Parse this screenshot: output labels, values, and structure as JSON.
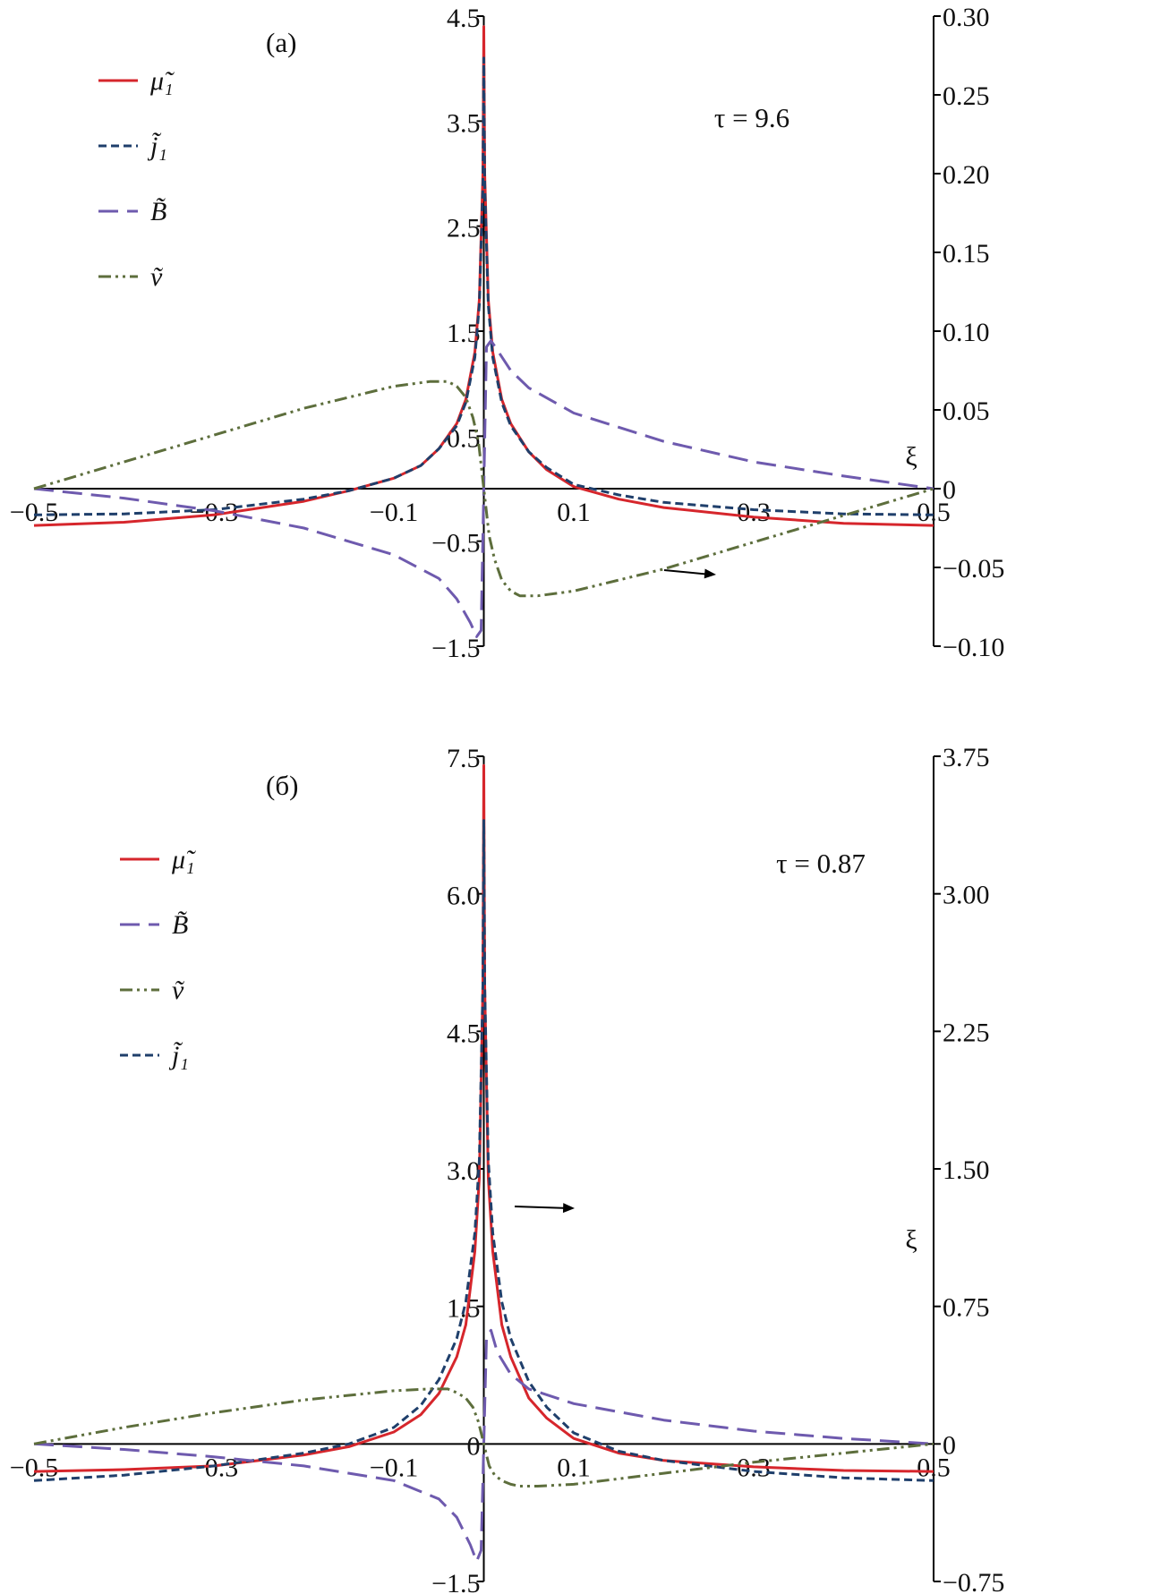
{
  "colors": {
    "mu1": "#d6262c",
    "j1": "#1f3f6b",
    "B": "#6e5aae",
    "v": "#5d6e3c",
    "axis": "#000000"
  },
  "chart_data": [
    {
      "type": "line",
      "panel_label": "(a)",
      "annotation": "τ = 9.6",
      "xlabel": "ξ",
      "xlim": [
        -0.5,
        0.5
      ],
      "x_ticks": [
        "-0.5",
        "-0.3",
        "-0.1",
        "0.1",
        "0.3",
        "0.5"
      ],
      "ylim_left": [
        -1.5,
        4.5
      ],
      "y_ticks_left": [
        "-1.5",
        "-0.5",
        "0.5",
        "1.5",
        "2.5",
        "3.5",
        "4.5"
      ],
      "ylim_right": [
        -0.1,
        0.3
      ],
      "y_ticks_right": [
        "-0.10",
        "-0.05",
        "0",
        "0.05",
        "0.10",
        "0.15",
        "0.20",
        "0.25",
        "0.30"
      ],
      "legend_position": "top-left",
      "legend": [
        {
          "key": "mu1",
          "label": "μ̃₁",
          "dash": "solid"
        },
        {
          "key": "j1",
          "label": "j̃₁",
          "dash": "short-dash"
        },
        {
          "key": "B",
          "label": "B̃",
          "dash": "long-dash"
        },
        {
          "key": "v",
          "label": "ṽ",
          "dash": "dash-dot-dot"
        }
      ],
      "arrow_note": "v plotted against right axis",
      "series": [
        {
          "key": "mu1",
          "axis": "left",
          "x": [
            -0.5,
            -0.4,
            -0.3,
            -0.2,
            -0.15,
            -0.1,
            -0.07,
            -0.05,
            -0.03,
            -0.02,
            -0.01,
            -0.005,
            -0.001,
            0,
            0.001,
            0.005,
            0.01,
            0.02,
            0.03,
            0.05,
            0.07,
            0.1,
            0.15,
            0.2,
            0.3,
            0.4,
            0.5
          ],
          "y": [
            -0.35,
            -0.32,
            -0.25,
            -0.12,
            -0.02,
            0.1,
            0.22,
            0.38,
            0.62,
            0.85,
            1.3,
            1.8,
            3.0,
            4.4,
            3.0,
            1.8,
            1.3,
            0.85,
            0.62,
            0.35,
            0.18,
            0.02,
            -0.1,
            -0.18,
            -0.27,
            -0.33,
            -0.35
          ]
        },
        {
          "key": "j1",
          "axis": "left",
          "x": [
            -0.5,
            -0.4,
            -0.3,
            -0.2,
            -0.15,
            -0.1,
            -0.07,
            -0.05,
            -0.03,
            -0.02,
            -0.01,
            -0.005,
            -0.001,
            0,
            0.001,
            0.005,
            0.01,
            0.02,
            0.03,
            0.05,
            0.07,
            0.1,
            0.15,
            0.2,
            0.3,
            0.4,
            0.5
          ],
          "y": [
            -0.25,
            -0.24,
            -0.2,
            -0.1,
            -0.02,
            0.1,
            0.22,
            0.38,
            0.6,
            0.82,
            1.25,
            1.75,
            2.9,
            4.1,
            2.9,
            1.75,
            1.25,
            0.82,
            0.6,
            0.35,
            0.2,
            0.04,
            -0.06,
            -0.13,
            -0.2,
            -0.24,
            -0.25
          ]
        },
        {
          "key": "B",
          "axis": "right",
          "x": [
            -0.5,
            -0.4,
            -0.3,
            -0.2,
            -0.1,
            -0.05,
            -0.03,
            -0.015,
            -0.008,
            -0.003,
            0,
            0.003,
            0.008,
            0.015,
            0.03,
            0.05,
            0.1,
            0.2,
            0.3,
            0.4,
            0.5
          ],
          "y": [
            0,
            -0.006,
            -0.014,
            -0.025,
            -0.042,
            -0.057,
            -0.07,
            -0.085,
            -0.094,
            -0.09,
            0,
            0.09,
            0.094,
            0.088,
            0.075,
            0.064,
            0.048,
            0.03,
            0.017,
            0.008,
            0
          ]
        },
        {
          "key": "v",
          "axis": "right",
          "x": [
            -0.5,
            -0.4,
            -0.3,
            -0.2,
            -0.1,
            -0.06,
            -0.04,
            -0.03,
            -0.02,
            -0.012,
            -0.006,
            0,
            0.006,
            0.012,
            0.02,
            0.03,
            0.04,
            0.06,
            0.1,
            0.2,
            0.3,
            0.4,
            0.5
          ],
          "y": [
            0,
            0.017,
            0.034,
            0.051,
            0.065,
            0.068,
            0.068,
            0.065,
            0.058,
            0.045,
            0.03,
            0,
            -0.03,
            -0.045,
            -0.058,
            -0.065,
            -0.068,
            -0.068,
            -0.065,
            -0.051,
            -0.034,
            -0.017,
            0
          ]
        }
      ]
    },
    {
      "type": "line",
      "panel_label": "(б)",
      "annotation": "τ = 0.87",
      "xlabel": "ξ",
      "xlim": [
        -0.5,
        0.5
      ],
      "x_ticks": [
        "-0.5",
        "-0.3",
        "-0.1",
        "0.1",
        "0.3",
        "0.5"
      ],
      "ylim_left": [
        -1.5,
        7.5
      ],
      "y_ticks_left": [
        "-1.5",
        "0",
        "1.5",
        "3.0",
        "4.5",
        "6.0",
        "7.5"
      ],
      "ylim_right": [
        -0.75,
        3.75
      ],
      "y_ticks_right": [
        "-0.75",
        "0",
        "0.75",
        "1.50",
        "2.25",
        "3.00",
        "3.75"
      ],
      "legend_position": "top-left",
      "legend": [
        {
          "key": "mu1",
          "label": "μ̃₁",
          "dash": "solid"
        },
        {
          "key": "B",
          "label": "B̃",
          "dash": "long-dash"
        },
        {
          "key": "v",
          "label": "ṽ",
          "dash": "dash-dot-dot"
        },
        {
          "key": "j1",
          "label": "j̃₁",
          "dash": "short-dash"
        }
      ],
      "arrow_note": "B plotted against right axis",
      "series": [
        {
          "key": "mu1",
          "axis": "left",
          "x": [
            -0.5,
            -0.4,
            -0.3,
            -0.2,
            -0.15,
            -0.1,
            -0.07,
            -0.05,
            -0.03,
            -0.02,
            -0.01,
            -0.005,
            -0.001,
            0,
            0.001,
            0.005,
            0.01,
            0.02,
            0.03,
            0.05,
            0.07,
            0.1,
            0.15,
            0.2,
            0.3,
            0.4,
            0.5
          ],
          "y": [
            -0.3,
            -0.28,
            -0.24,
            -0.12,
            -0.03,
            0.13,
            0.32,
            0.55,
            0.95,
            1.3,
            2.1,
            2.9,
            5.0,
            7.4,
            5.0,
            2.9,
            2.1,
            1.3,
            0.95,
            0.5,
            0.28,
            0.06,
            -0.1,
            -0.18,
            -0.25,
            -0.29,
            -0.3
          ]
        },
        {
          "key": "j1",
          "axis": "left",
          "x": [
            -0.5,
            -0.4,
            -0.3,
            -0.2,
            -0.15,
            -0.1,
            -0.07,
            -0.05,
            -0.03,
            -0.02,
            -0.01,
            -0.005,
            -0.001,
            0,
            0.001,
            0.005,
            0.01,
            0.02,
            0.03,
            0.05,
            0.07,
            0.1,
            0.15,
            0.2,
            0.3,
            0.4,
            0.5
          ],
          "y": [
            -0.4,
            -0.34,
            -0.24,
            -0.1,
            0.0,
            0.18,
            0.42,
            0.7,
            1.15,
            1.55,
            2.3,
            3.1,
            5.0,
            6.8,
            5.0,
            3.1,
            2.3,
            1.55,
            1.15,
            0.68,
            0.4,
            0.12,
            -0.08,
            -0.18,
            -0.3,
            -0.37,
            -0.4
          ]
        },
        {
          "key": "B",
          "axis": "right",
          "x": [
            -0.5,
            -0.4,
            -0.3,
            -0.2,
            -0.1,
            -0.05,
            -0.03,
            -0.015,
            -0.008,
            -0.003,
            0,
            0.003,
            0.008,
            0.015,
            0.03,
            0.05,
            0.1,
            0.2,
            0.3,
            0.4,
            0.5
          ],
          "y": [
            0,
            -0.03,
            -0.07,
            -0.12,
            -0.2,
            -0.3,
            -0.4,
            -0.55,
            -0.64,
            -0.58,
            0,
            0.58,
            0.62,
            0.5,
            0.38,
            0.3,
            0.22,
            0.13,
            0.07,
            0.03,
            0
          ]
        },
        {
          "key": "v",
          "axis": "right",
          "x": [
            -0.5,
            -0.4,
            -0.3,
            -0.2,
            -0.1,
            -0.06,
            -0.04,
            -0.03,
            -0.02,
            -0.012,
            -0.006,
            0,
            0.006,
            0.012,
            0.02,
            0.03,
            0.04,
            0.06,
            0.1,
            0.2,
            0.3,
            0.4,
            0.5
          ],
          "y": [
            0,
            0.09,
            0.17,
            0.24,
            0.29,
            0.3,
            0.3,
            0.28,
            0.25,
            0.2,
            0.12,
            0,
            -0.12,
            -0.17,
            -0.2,
            -0.22,
            -0.23,
            -0.23,
            -0.22,
            -0.16,
            -0.1,
            -0.05,
            0
          ]
        }
      ]
    }
  ]
}
